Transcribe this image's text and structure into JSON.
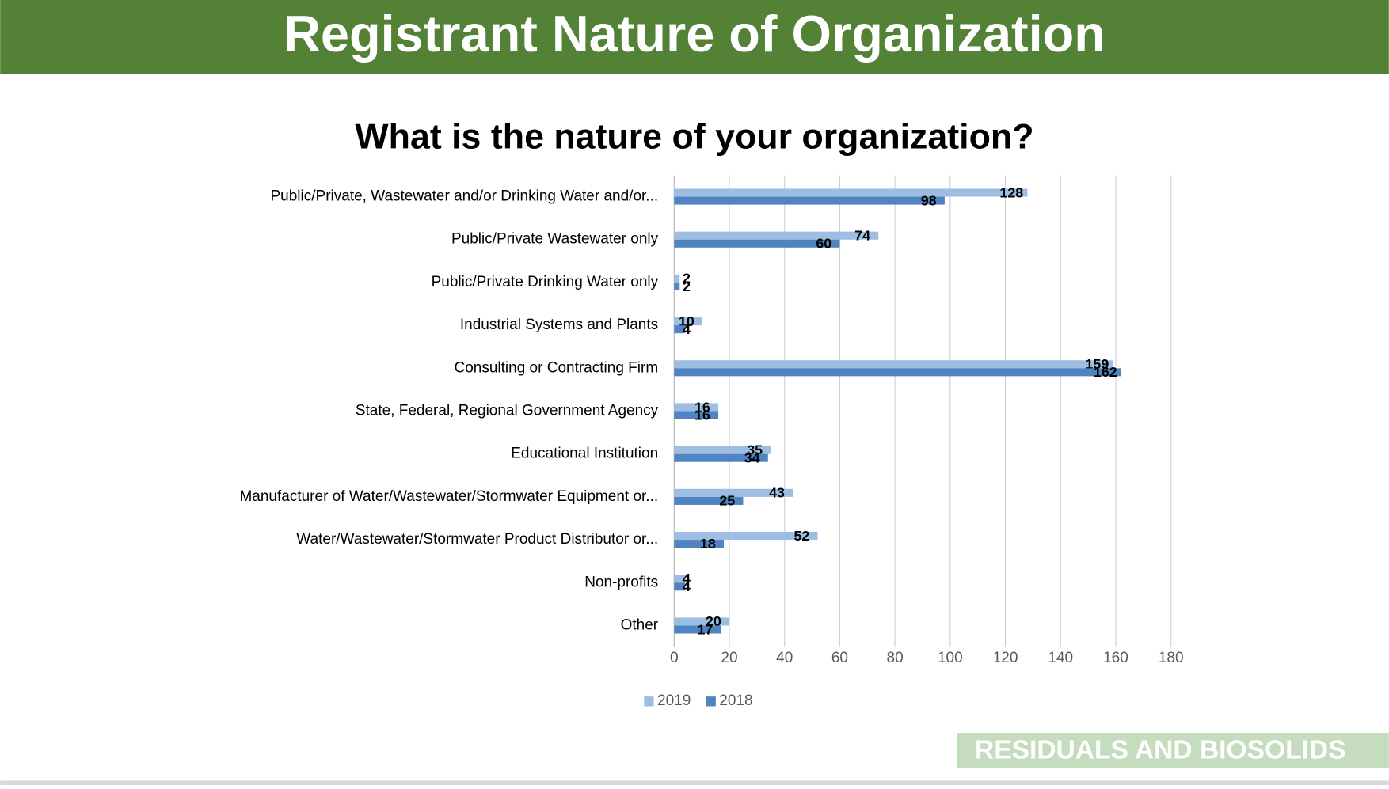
{
  "header": {
    "title": "Registrant Nature of Organization"
  },
  "footer": {
    "text": "RESIDUALS AND BIOSOLIDS"
  },
  "chart_data": {
    "type": "hbar",
    "title": "What is the nature of your organization?",
    "categories": [
      "Public/Private, Wastewater and/or Drinking Water and/or...",
      "Public/Private Wastewater only",
      "Public/Private Drinking Water only",
      "Industrial Systems and Plants",
      "Consulting or Contracting Firm",
      "State, Federal, Regional Government Agency",
      "Educational Institution",
      "Manufacturer of Water/Wastewater/Stormwater Equipment or...",
      "Water/Wastewater/Stormwater Product Distributor or...",
      "Non-profits",
      "Other"
    ],
    "series": [
      {
        "name": "2019",
        "color": "#9dbde3",
        "values": [
          128,
          74,
          2,
          10,
          159,
          16,
          35,
          43,
          52,
          4,
          20
        ]
      },
      {
        "name": "2018",
        "color": "#4f84c0",
        "values": [
          98,
          60,
          2,
          4,
          162,
          16,
          34,
          25,
          18,
          4,
          17
        ]
      }
    ],
    "xlim": [
      0,
      180
    ],
    "xticks": [
      0,
      20,
      40,
      60,
      80,
      100,
      120,
      140,
      160,
      180
    ],
    "grid": true,
    "legend": "bottom"
  }
}
